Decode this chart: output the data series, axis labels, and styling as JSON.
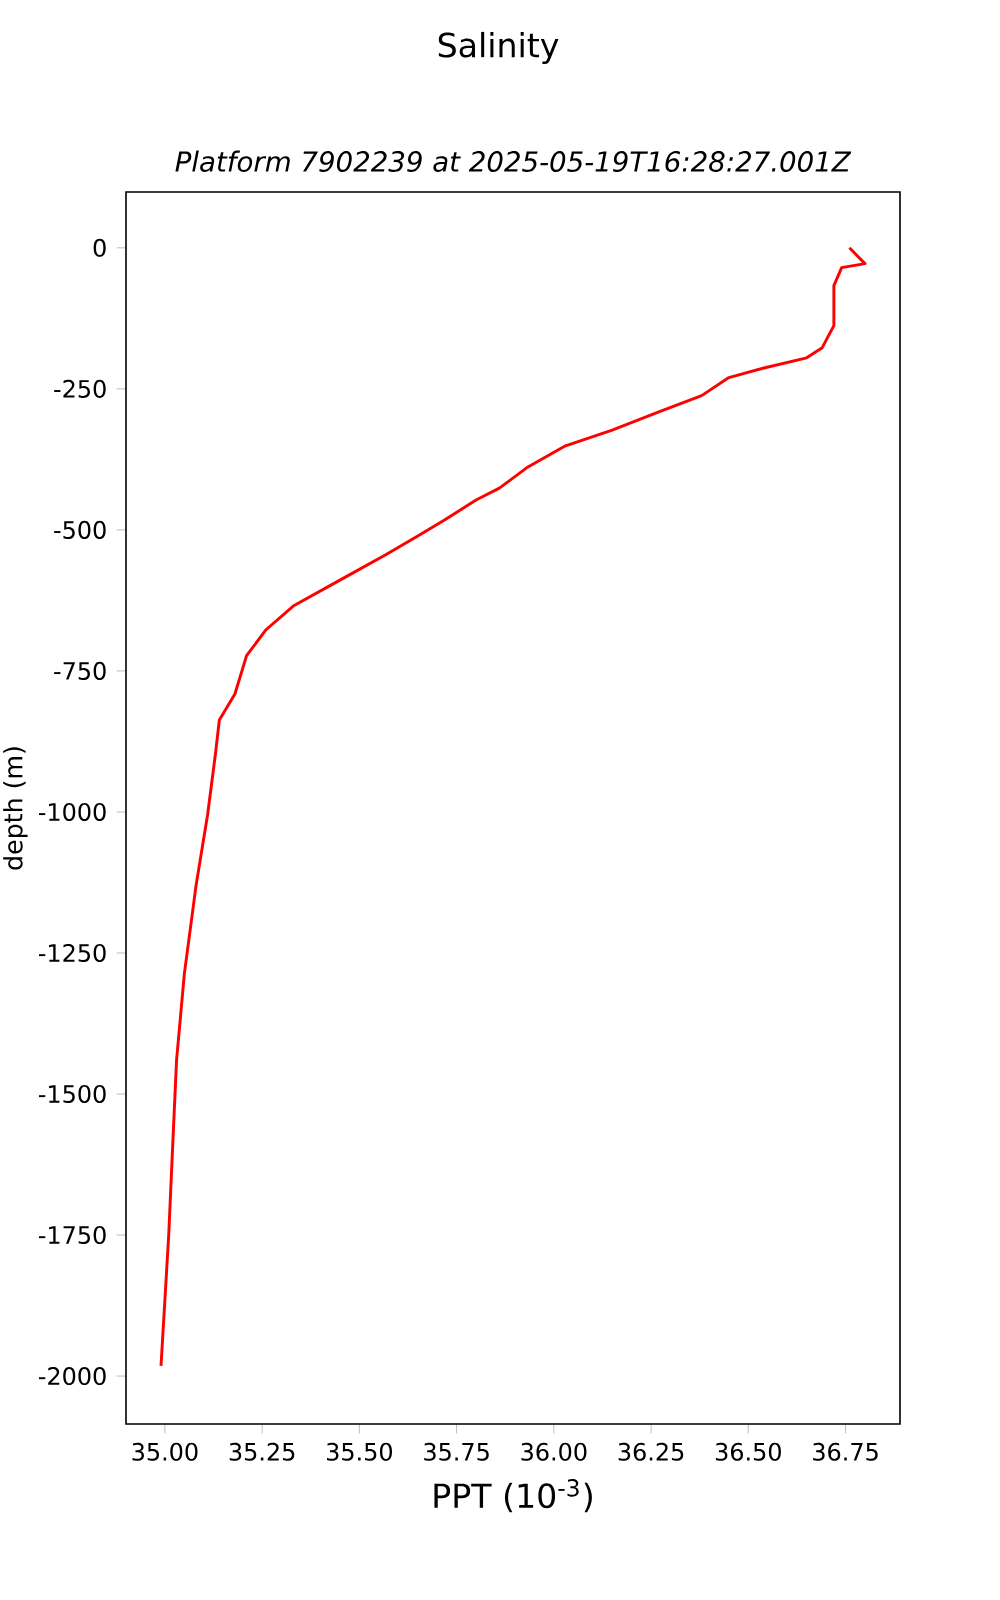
{
  "chart_data": {
    "type": "line",
    "title": "Salinity",
    "subtitle": "*Platform 7902239 at 2025-05-19T16:28:27.001Z*",
    "xlabel": "PPT (10$^{-3}$)",
    "ylabel": "depth (m)",
    "xlim": [
      34.9,
      36.89
    ],
    "ylim": [
      -2085,
      99
    ],
    "xticks": [
      {
        "value": 35.0,
        "label": "35.00"
      },
      {
        "value": 35.25,
        "label": "35.25"
      },
      {
        "value": 35.5,
        "label": "35.50"
      },
      {
        "value": 35.75,
        "label": "35.75"
      },
      {
        "value": 36.0,
        "label": "36.00"
      },
      {
        "value": 36.25,
        "label": "36.25"
      },
      {
        "value": 36.5,
        "label": "36.50"
      },
      {
        "value": 36.75,
        "label": "36.75"
      }
    ],
    "yticks": [
      0,
      -250,
      -500,
      -750,
      -1000,
      -1250,
      -1500,
      -1750,
      -2000
    ],
    "grid": false,
    "marker": "none",
    "line_style": "solid",
    "series": [
      {
        "color": "#ff0000",
        "x": [
          36.76,
          36.8,
          36.74,
          36.72,
          36.72,
          36.69,
          36.65,
          36.54,
          36.45,
          36.38,
          36.27,
          36.15,
          36.03,
          35.93,
          35.86,
          35.8,
          35.72,
          35.66,
          35.57,
          35.45,
          35.33,
          35.26,
          35.21,
          35.18,
          35.14,
          35.13,
          35.11,
          35.08,
          35.05,
          35.03,
          35.02,
          35.01,
          34.99
        ],
        "values": [
          0,
          -28,
          -35,
          -67,
          -138,
          -177,
          -195,
          -213,
          -230,
          -262,
          -291,
          -323,
          -351,
          -390,
          -426,
          -447,
          -482,
          -507,
          -543,
          -589,
          -635,
          -677,
          -723,
          -791,
          -837,
          -897,
          -1004,
          -1131,
          -1287,
          -1440,
          -1592,
          -1748,
          -1982
        ]
      }
    ]
  }
}
